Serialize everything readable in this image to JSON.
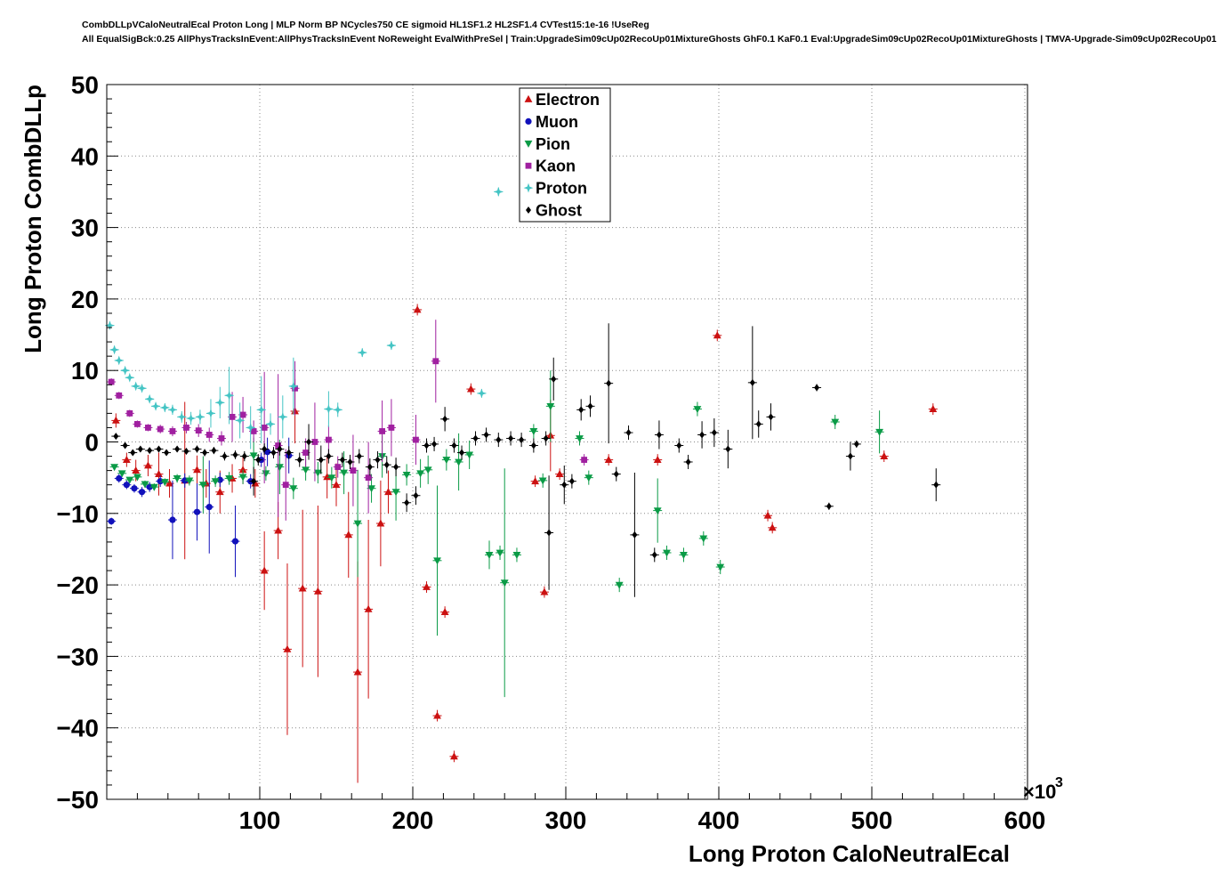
{
  "title": {
    "line1": "CombDLLpVCaloNeutralEcal Proton Long | MLP Norm BP NCycles750 CE sigmoid HL1SF1.2 HL2SF1.4 CVTest15:1e-16 !UseReg",
    "line2": "All EqualSigBck:0.25 AllPhysTracksInEvent:AllPhysTracksInEvent NoReweight EvalWithPreSel | Train:UpgradeSim09cUp02RecoUp01MixtureGhosts GhF0.1 KaF0.1 Eval:UpgradeSim09cUp02RecoUp01MixtureGhosts | TMVA-Upgrade-Sim09cUp02RecoUp01"
  },
  "chart_data": {
    "type": "scatter",
    "title": "CombDLLpVCaloNeutralEcal Proton Long",
    "xlabel": "Long Proton CaloNeutralEcal",
    "ylabel": "Long Proton CombDLLp",
    "x_unit_base": "×10",
    "x_unit_exp": "3",
    "xlim": [
      0,
      600
    ],
    "ylim": [
      -50,
      50
    ],
    "x_ticks": [
      100,
      200,
      300,
      400,
      500,
      600
    ],
    "y_ticks": [
      -50,
      -40,
      -30,
      -20,
      -10,
      0,
      10,
      20,
      30,
      40,
      50
    ],
    "x_minor_step": 20,
    "y_minor_step": 2,
    "grid": "dotted",
    "legend_position": "top-center",
    "point_format": "[x_in_1e3, y, yerr]",
    "series": [
      {
        "name": "Electron",
        "color": "#cc1111",
        "marker": "triangle-up",
        "points": [
          [
            6,
            3,
            1
          ],
          [
            13,
            -2.5,
            1
          ],
          [
            19,
            -4,
            1.5
          ],
          [
            27,
            -3.3,
            1.5
          ],
          [
            34,
            -4.5,
            3
          ],
          [
            41,
            -5.8,
            2
          ],
          [
            51,
            -5.4,
            11
          ],
          [
            59,
            -3.9,
            2
          ],
          [
            65,
            -5.8,
            2
          ],
          [
            74,
            -7,
            3
          ],
          [
            82,
            -5.1,
            2
          ],
          [
            89,
            -3.9,
            2
          ],
          [
            97,
            -5.8,
            2
          ],
          [
            103,
            -18,
            5.5
          ],
          [
            112,
            -12.4,
            4
          ],
          [
            118,
            -29,
            12
          ],
          [
            123,
            4.3,
            4.5
          ],
          [
            128,
            -20.5,
            11
          ],
          [
            138,
            -20.9,
            12
          ],
          [
            144,
            -4.9,
            3
          ],
          [
            150,
            -6,
            3
          ],
          [
            158,
            -13,
            6
          ],
          [
            164,
            -32.2,
            15.5
          ],
          [
            171,
            -23.4,
            12.5
          ],
          [
            179,
            -11.4,
            6
          ],
          [
            184,
            -7,
            3
          ],
          [
            203,
            18.5,
            0.8
          ],
          [
            209,
            -20.3,
            0.8
          ],
          [
            216,
            -38.3,
            0.8
          ],
          [
            221,
            -23.8,
            0.8
          ],
          [
            227,
            -44,
            0.8
          ],
          [
            238,
            7.4,
            0.8
          ],
          [
            280,
            -5.5,
            0.8
          ],
          [
            286,
            -21,
            0.8
          ],
          [
            290,
            0.9,
            5
          ],
          [
            296,
            -4.5,
            0.8
          ],
          [
            328,
            -2.5,
            0.8
          ],
          [
            360,
            -2.5,
            0.8
          ],
          [
            399,
            14.9,
            0.8
          ],
          [
            432,
            -10.3,
            0.8
          ],
          [
            435,
            -12,
            0.8
          ],
          [
            508,
            -2,
            0.8
          ],
          [
            540,
            4.6,
            0.8
          ]
        ]
      },
      {
        "name": "Muon",
        "color": "#1111bb",
        "marker": "circle",
        "points": [
          [
            3,
            -11.1,
            0.5
          ],
          [
            8,
            -5.1,
            0.6
          ],
          [
            13,
            -6,
            0.6
          ],
          [
            18,
            -6.5,
            0.6
          ],
          [
            23,
            -7,
            0.7
          ],
          [
            28,
            -6.3,
            0.7
          ],
          [
            35,
            -5.5,
            0.8
          ],
          [
            43,
            -10.9,
            5.5
          ],
          [
            51,
            -5.4,
            1
          ],
          [
            59,
            -9.8,
            4
          ],
          [
            67,
            -9.1,
            6.5
          ],
          [
            74,
            -5.3,
            1
          ],
          [
            84,
            -13.9,
            5
          ],
          [
            94,
            -5.5,
            1
          ],
          [
            101,
            -2.5,
            1
          ],
          [
            105,
            -1.4,
            2
          ],
          [
            119,
            -1.9,
            2.5
          ]
        ]
      },
      {
        "name": "Pion",
        "color": "#0a9b46",
        "marker": "triangle-down",
        "points": [
          [
            5,
            -3.5,
            0.4
          ],
          [
            10,
            -4.4,
            0.4
          ],
          [
            15,
            -5.3,
            0.4
          ],
          [
            20,
            -4.9,
            0.4
          ],
          [
            25,
            -5.9,
            0.5
          ],
          [
            31,
            -6.3,
            0.5
          ],
          [
            38,
            -5.6,
            0.5
          ],
          [
            46,
            -5.1,
            0.6
          ],
          [
            54,
            -5.4,
            0.7
          ],
          [
            63,
            -6,
            4
          ],
          [
            71,
            -5.5,
            0.8
          ],
          [
            80,
            -5.1,
            0.9
          ],
          [
            89,
            -4.9,
            1
          ],
          [
            96,
            -1.9,
            2.5
          ],
          [
            104,
            -4.4,
            1
          ],
          [
            113,
            -3.5,
            3.8
          ],
          [
            122,
            -6.5,
            1.5
          ],
          [
            130,
            -3.9,
            1.5
          ],
          [
            138,
            -4.3,
            1.5
          ],
          [
            147,
            -5,
            1.5
          ],
          [
            155,
            -4.3,
            3
          ],
          [
            164,
            -11.4,
            7.5
          ],
          [
            173,
            -6.5,
            2
          ],
          [
            180,
            -2,
            3
          ],
          [
            189,
            -7,
            4
          ],
          [
            196,
            -4.6,
            1.5
          ],
          [
            205,
            -4.4,
            2
          ],
          [
            210,
            -3.9,
            2
          ],
          [
            216,
            -16.6,
            10.5
          ],
          [
            222,
            -2.5,
            1.5
          ],
          [
            230,
            -2.8,
            4
          ],
          [
            237,
            -1.8,
            2
          ],
          [
            250,
            -15.8,
            2
          ],
          [
            257,
            -15.5,
            1
          ],
          [
            260,
            -19.7,
            16
          ],
          [
            268,
            -15.8,
            1
          ],
          [
            279,
            1.5,
            1
          ],
          [
            285,
            -5.4,
            1
          ],
          [
            290,
            5,
            5
          ],
          [
            309,
            0.5,
            1
          ],
          [
            315,
            -5,
            1
          ],
          [
            335,
            -20,
            1
          ],
          [
            360,
            -9.6,
            4.5
          ],
          [
            366,
            -15.5,
            1
          ],
          [
            377,
            -15.8,
            1
          ],
          [
            386,
            4.6,
            1
          ],
          [
            390,
            -13.5,
            1
          ],
          [
            401,
            -17.5,
            1
          ],
          [
            476,
            2.8,
            1
          ],
          [
            505,
            1.4,
            3
          ]
        ]
      },
      {
        "name": "Kaon",
        "color": "#a020a0",
        "marker": "square",
        "points": [
          [
            3,
            8.4,
            0.5
          ],
          [
            8,
            6.5,
            0.5
          ],
          [
            15,
            4,
            0.5
          ],
          [
            20,
            2.5,
            0.5
          ],
          [
            27,
            2,
            0.5
          ],
          [
            35,
            1.8,
            0.6
          ],
          [
            43,
            1.5,
            0.7
          ],
          [
            52,
            2,
            0.8
          ],
          [
            60,
            1.6,
            0.9
          ],
          [
            67,
            1,
            1
          ],
          [
            75,
            0.5,
            1
          ],
          [
            82,
            3.5,
            3.5
          ],
          [
            89,
            3.8,
            2.5
          ],
          [
            96,
            1.5,
            1.5
          ],
          [
            103,
            2,
            7.8
          ],
          [
            112,
            -0.5,
            10
          ],
          [
            117,
            -6,
            5
          ],
          [
            123,
            7.5,
            3.8
          ],
          [
            130,
            -1.5,
            2
          ],
          [
            136,
            0,
            5.5
          ],
          [
            145,
            0.3,
            2
          ],
          [
            151,
            -3.5,
            1.5
          ],
          [
            161,
            -4,
            5
          ],
          [
            171,
            -5,
            5
          ],
          [
            180,
            1.5,
            4.3
          ],
          [
            186,
            2,
            4
          ],
          [
            202,
            0.3,
            3.5
          ],
          [
            215,
            11.3,
            5.8
          ],
          [
            312,
            -2.5,
            0.8
          ]
        ]
      },
      {
        "name": "Proton",
        "color": "#44c4c4",
        "marker": "star",
        "points": [
          [
            2,
            16.3,
            0.4
          ],
          [
            5,
            12.9,
            0.4
          ],
          [
            8,
            11.4,
            0.4
          ],
          [
            12,
            10,
            0.4
          ],
          [
            15,
            9,
            0.4
          ],
          [
            19,
            7.8,
            0.4
          ],
          [
            23,
            7.5,
            0.5
          ],
          [
            28,
            6,
            0.5
          ],
          [
            32,
            5,
            0.5
          ],
          [
            38,
            4.8,
            0.6
          ],
          [
            43,
            4.5,
            0.7
          ],
          [
            49,
            3.5,
            0.8
          ],
          [
            55,
            3.3,
            0.9
          ],
          [
            61,
            3.5,
            1
          ],
          [
            68,
            4,
            2
          ],
          [
            74,
            5.5,
            2.2
          ],
          [
            80,
            6.5,
            4
          ],
          [
            87,
            3,
            2.5
          ],
          [
            94,
            2,
            3
          ],
          [
            101,
            4.5,
            4.7
          ],
          [
            107,
            2.5,
            1.5
          ],
          [
            115,
            3.5,
            3
          ],
          [
            122,
            7.8,
            4
          ],
          [
            145,
            4.6,
            2.5
          ],
          [
            151,
            4.5,
            1
          ],
          [
            167,
            12.5,
            0.6
          ],
          [
            186,
            13.5,
            0.6
          ],
          [
            245,
            6.8,
            0.6
          ],
          [
            256,
            35,
            0.6
          ]
        ]
      },
      {
        "name": "Ghost",
        "color": "#000000",
        "marker": "diamond",
        "points": [
          [
            6,
            0.8,
            0.3
          ],
          [
            12,
            -0.5,
            0.3
          ],
          [
            17,
            -1.5,
            0.3
          ],
          [
            22,
            -1,
            0.3
          ],
          [
            28,
            -1.2,
            0.3
          ],
          [
            34,
            -1,
            0.3
          ],
          [
            39,
            -1.5,
            0.4
          ],
          [
            46,
            -1,
            0.4
          ],
          [
            52,
            -1.3,
            0.4
          ],
          [
            59,
            -1,
            0.5
          ],
          [
            64,
            -1.5,
            0.5
          ],
          [
            70,
            -1.2,
            0.5
          ],
          [
            77,
            -2,
            0.6
          ],
          [
            84,
            -1.8,
            0.6
          ],
          [
            90,
            -2,
            0.7
          ],
          [
            96,
            -5.5,
            2
          ],
          [
            99,
            -2.5,
            0.8
          ],
          [
            103,
            -1,
            0.8
          ],
          [
            109,
            -1.5,
            0.8
          ],
          [
            113,
            -1,
            0.9
          ],
          [
            119,
            -1.5,
            0.9
          ],
          [
            126,
            -2.5,
            1
          ],
          [
            132,
            0,
            2.5
          ],
          [
            140,
            -2.5,
            2
          ],
          [
            145,
            -2,
            1
          ],
          [
            154,
            -2.5,
            1
          ],
          [
            159,
            -2.8,
            1
          ],
          [
            165,
            -2,
            1
          ],
          [
            172,
            -3.5,
            1.2
          ],
          [
            177,
            -2.5,
            1.2
          ],
          [
            183,
            -3.2,
            1.2
          ],
          [
            189,
            -3.5,
            1.3
          ],
          [
            196,
            -8.5,
            1.3
          ],
          [
            202,
            -7.5,
            1.3
          ],
          [
            209,
            -0.5,
            1
          ],
          [
            214,
            -0.3,
            1
          ],
          [
            221,
            3.2,
            1.7
          ],
          [
            227,
            -0.5,
            1
          ],
          [
            232,
            -1.5,
            1
          ],
          [
            241,
            0.5,
            1
          ],
          [
            248,
            1,
            1
          ],
          [
            256,
            0.3,
            1
          ],
          [
            264,
            0.5,
            1
          ],
          [
            271,
            0.3,
            1
          ],
          [
            279,
            -0.5,
            1
          ],
          [
            287,
            0.5,
            1
          ],
          [
            289,
            -12.7,
            8
          ],
          [
            292,
            8.8,
            3
          ],
          [
            299,
            -6,
            2.7
          ],
          [
            304,
            -5.5,
            1
          ],
          [
            310,
            4.5,
            1.5
          ],
          [
            316,
            5,
            1.5
          ],
          [
            328,
            8.2,
            8.4
          ],
          [
            333,
            -4.5,
            1
          ],
          [
            341,
            1.3,
            1
          ],
          [
            345,
            -13,
            8.7
          ],
          [
            358,
            -15.8,
            1
          ],
          [
            361,
            1,
            2
          ],
          [
            374,
            -0.5,
            1
          ],
          [
            380,
            -2.8,
            1
          ],
          [
            389,
            1,
            1.9
          ],
          [
            397,
            1.3,
            2
          ],
          [
            406,
            -1,
            2.7
          ],
          [
            422,
            8.3,
            7.9
          ],
          [
            426,
            2.5,
            1.9
          ],
          [
            434,
            3.5,
            1.9
          ],
          [
            464,
            7.6,
            0.5
          ],
          [
            472,
            -9,
            0.5
          ],
          [
            486,
            -2,
            2
          ],
          [
            490,
            -0.3,
            0.5
          ],
          [
            542,
            -6,
            2.3
          ]
        ]
      }
    ]
  }
}
